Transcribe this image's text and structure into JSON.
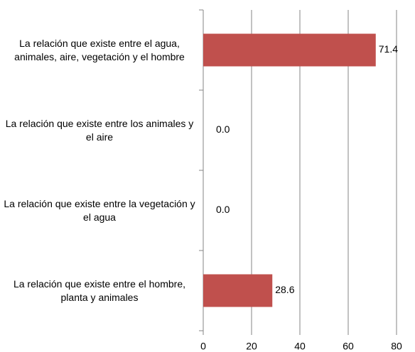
{
  "chart_data": {
    "type": "bar",
    "orientation": "horizontal",
    "categories": [
      "La relación que existe entre el agua, animales, aire, vegetación y el hombre",
      "La relación que existe entre los animales y el aire",
      "La relación que existe entre la vegetación y el agua",
      "La relación que existe entre el hombre, planta y animales"
    ],
    "values": [
      71.4,
      0,
      0,
      28.6
    ],
    "value_labels": [
      "71.4",
      "0.0",
      "0.0",
      "28.6"
    ],
    "color": "#c0504d",
    "xlim": [
      0,
      80
    ],
    "xticks": [
      0,
      20,
      40,
      60,
      80
    ],
    "grid": true
  }
}
